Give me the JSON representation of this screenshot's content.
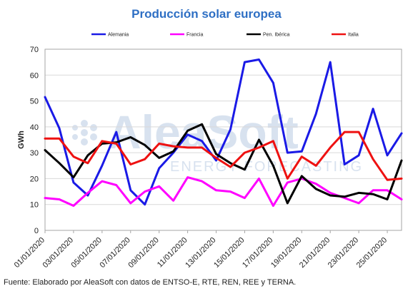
{
  "chart_data": {
    "type": "line",
    "title": "Producción solar europea",
    "ylabel": "GWh",
    "xlabel": "",
    "ylim": [
      0,
      70
    ],
    "yticks": [
      0,
      10,
      20,
      30,
      40,
      50,
      60,
      70
    ],
    "grid": true,
    "legend_position": "top",
    "x": [
      "01/01/2020",
      "02/01/2020",
      "03/01/2020",
      "04/01/2020",
      "05/01/2020",
      "06/01/2020",
      "07/01/2020",
      "08/01/2020",
      "09/01/2020",
      "10/01/2020",
      "11/01/2020",
      "12/01/2020",
      "13/01/2020",
      "14/01/2020",
      "15/01/2020",
      "16/01/2020",
      "17/01/2020",
      "18/01/2020",
      "19/01/2020",
      "20/01/2020",
      "21/01/2020",
      "22/01/2020",
      "23/01/2020",
      "24/01/2020",
      "25/01/2020",
      "26/01/2020"
    ],
    "x_tick_labels": [
      "01/01/2020",
      "03/01/2020",
      "05/01/2020",
      "07/01/2020",
      "09/01/2020",
      "11/01/2020",
      "13/01/2020",
      "15/01/2020",
      "17/01/2020",
      "19/01/2020",
      "21/01/2020",
      "23/01/2020",
      "25/01/2020"
    ],
    "series": [
      {
        "name": "Alemania",
        "color": "#1a1ae6",
        "values": [
          51.5,
          39.5,
          18.5,
          13.5,
          25,
          38,
          15.5,
          10,
          24,
          30,
          37,
          34.5,
          27,
          39,
          65,
          66,
          57,
          30,
          30.5,
          45,
          65,
          25.5,
          29,
          47,
          29,
          37.5
        ]
      },
      {
        "name": "Francia",
        "color": "#ff00ff",
        "values": [
          12.5,
          12,
          9.5,
          14.5,
          19,
          17.5,
          10.5,
          15,
          17,
          11.5,
          20.5,
          19,
          15.5,
          15,
          12.5,
          20,
          9.5,
          18.5,
          20,
          18,
          14.5,
          12.5,
          10.5,
          15.5,
          15.5,
          12
        ]
      },
      {
        "name": "Pen. Ibérica",
        "color": "#000000",
        "values": [
          31,
          26,
          20.5,
          29,
          33.5,
          34,
          36,
          33,
          28,
          30.5,
          38.5,
          41,
          29.5,
          26,
          23.5,
          35,
          25,
          10.5,
          21,
          16,
          13.5,
          13,
          14.5,
          14,
          12,
          27
        ]
      },
      {
        "name": "Italia",
        "color": "#ee1111",
        "values": [
          35.5,
          35.5,
          28.5,
          26,
          34.5,
          33.5,
          25.5,
          27.5,
          33.5,
          32.5,
          32,
          32,
          28,
          24.5,
          30,
          32,
          34.5,
          20,
          28.5,
          25,
          32,
          38,
          38,
          27.5,
          19.5,
          20
        ]
      }
    ]
  },
  "watermark": {
    "main": "AleaSoft",
    "sub": "ENERGY FORECASTING"
  },
  "source": "Fuente: Elaborado por AleaSoft con datos de ENTSO-E, RTE, REN, REE y TERNA."
}
